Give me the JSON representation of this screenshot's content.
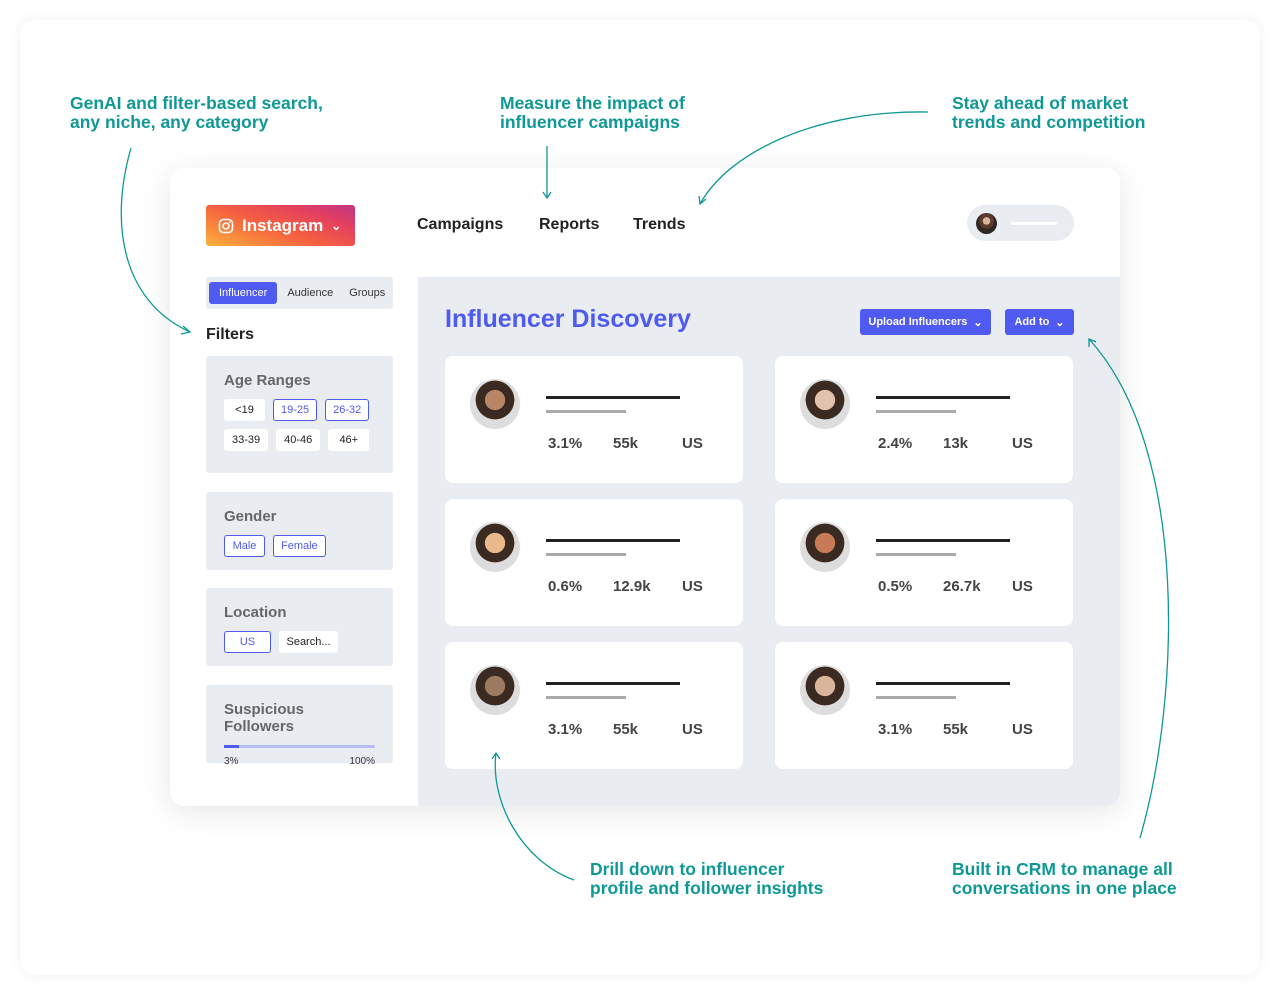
{
  "annotations": {
    "search": "GenAI and filter-based search,\nany niche, any category",
    "impact": "Measure the impact of\ninfluencer campaigns",
    "trends": "Stay ahead of market\ntrends and competition",
    "drill": "Drill down to influencer\nprofile and follower insights",
    "crm": "Built in CRM to manage all\nconversations in one place"
  },
  "header": {
    "platform": "Instagram",
    "nav": [
      "Campaigns",
      "Reports",
      "Trends"
    ]
  },
  "sidebar": {
    "tabs": [
      "Influencer",
      "Audience",
      "Groups"
    ],
    "filters_label": "Filters",
    "age": {
      "title": "Age Ranges",
      "options": [
        {
          "label": "<19",
          "selected": false
        },
        {
          "label": "19-25",
          "selected": true
        },
        {
          "label": "26-32",
          "selected": true
        },
        {
          "label": "33-39",
          "selected": false
        },
        {
          "label": "40-46",
          "selected": false
        },
        {
          "label": "46+",
          "selected": false
        }
      ]
    },
    "gender": {
      "title": "Gender",
      "options": [
        "Male",
        "Female"
      ]
    },
    "location": {
      "title": "Location",
      "selected": "US",
      "search_placeholder": "Search..."
    },
    "suspicious": {
      "title": "Suspicious Followers",
      "min": "3%",
      "max": "100%",
      "value_percent": 3
    }
  },
  "main": {
    "title": "Influencer Discovery",
    "upload_label": "Upload Influencers",
    "addto_label": "Add to",
    "cards": [
      {
        "engagement": "3.1%",
        "followers": "55k",
        "country": "US"
      },
      {
        "engagement": "2.4%",
        "followers": "13k",
        "country": "US"
      },
      {
        "engagement": "0.6%",
        "followers": "12.9k",
        "country": "US"
      },
      {
        "engagement": "0.5%",
        "followers": "26.7k",
        "country": "US"
      },
      {
        "engagement": "3.1%",
        "followers": "55k",
        "country": "US"
      },
      {
        "engagement": "3.1%",
        "followers": "55k",
        "country": "US"
      }
    ]
  },
  "colors": {
    "accent": "#4f5bf0",
    "annotation": "#0e9896",
    "panel": "#e9edf2"
  }
}
